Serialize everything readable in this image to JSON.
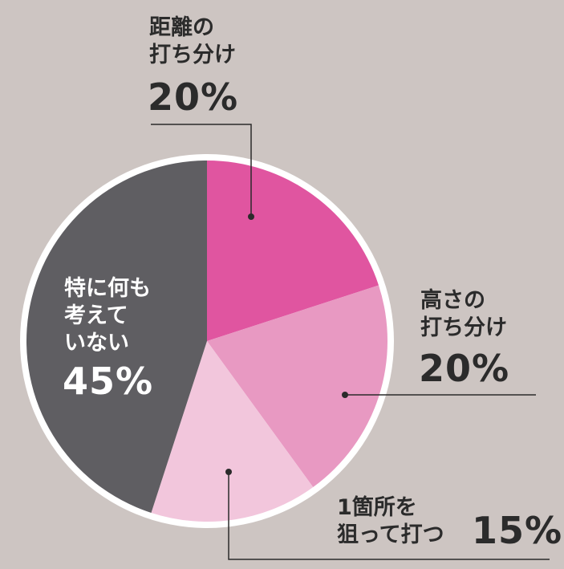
{
  "chart_data": {
    "type": "pie",
    "categories": [
      "距離の\n打ち分け",
      "高さの\n打ち分け",
      "1箇所を\n狙って打つ",
      "特に何も\n考えて\nいない"
    ],
    "values": [
      20,
      20,
      15,
      45
    ],
    "value_labels": [
      "20%",
      "20%",
      "15%",
      "45%"
    ],
    "colors": [
      "#e055a0",
      "#e899c2",
      "#f2c6dc",
      "#5f5e62"
    ]
  }
}
